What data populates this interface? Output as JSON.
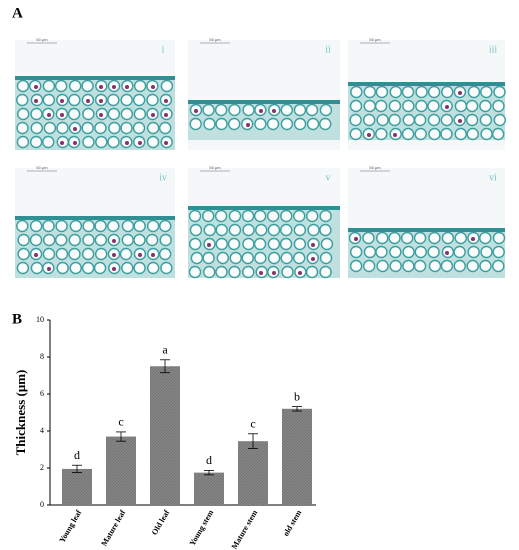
{
  "panel_a": {
    "label": "A",
    "images": [
      {
        "numeral": "i",
        "scale": "50 μm"
      },
      {
        "numeral": "ii",
        "scale": "50 μm"
      },
      {
        "numeral": "iii",
        "scale": "50 μm"
      },
      {
        "numeral": "iv",
        "scale": "50 μm"
      },
      {
        "numeral": "v",
        "scale": "50 μm"
      },
      {
        "numeral": "vi",
        "scale": "50 μm"
      }
    ]
  },
  "panel_b": {
    "label": "B"
  },
  "chart_data": {
    "type": "bar",
    "ylabel": "Thickness (μm)",
    "categories": [
      "Young leaf",
      "Mature leaf",
      "Old leaf",
      "Young stem",
      "Mature stem",
      "old stem"
    ],
    "values": [
      1.95,
      3.7,
      7.5,
      1.75,
      3.45,
      5.2
    ],
    "errors": [
      0.2,
      0.25,
      0.35,
      0.12,
      0.4,
      0.12
    ],
    "significance": [
      "d",
      "c",
      "a",
      "d",
      "c",
      "b"
    ],
    "color": "#808080",
    "ylim": [
      0,
      10
    ],
    "yticks": [
      0,
      2,
      4,
      6,
      8,
      10
    ]
  }
}
